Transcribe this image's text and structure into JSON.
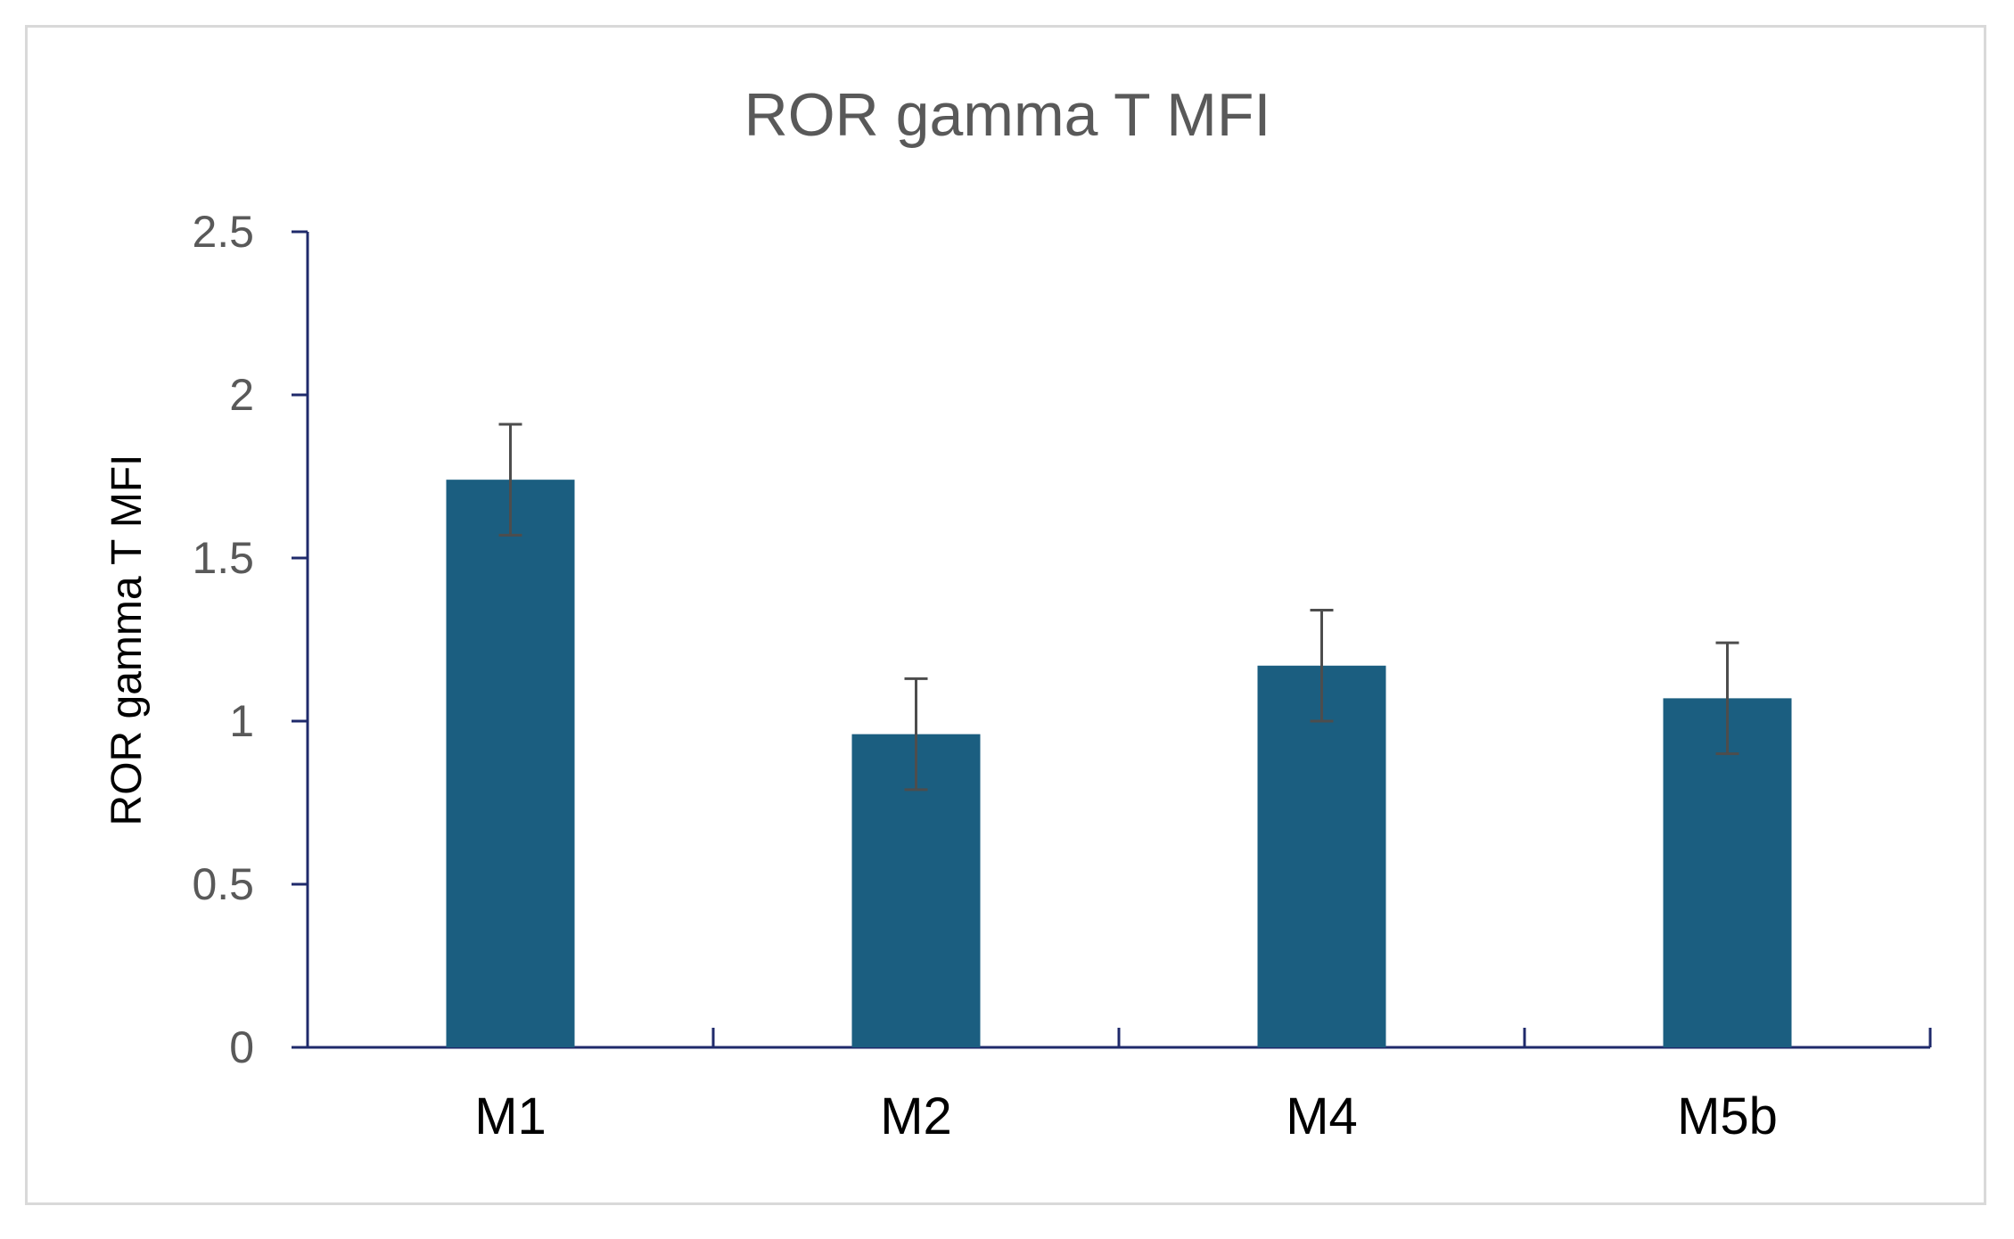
{
  "chart_data": {
    "type": "bar",
    "title": "ROR gamma T MFI",
    "xlabel": "",
    "ylabel": "ROR gamma T MFI",
    "categories": [
      "M1",
      "M2",
      "M4",
      "M5b"
    ],
    "values": [
      1.74,
      0.96,
      1.17,
      1.07
    ],
    "errors": [
      0.17,
      0.17,
      0.17,
      0.17
    ],
    "ylim": [
      0,
      2.5
    ],
    "yticks": [
      0,
      0.5,
      1,
      1.5,
      2,
      2.5
    ],
    "ytick_labels": [
      "0",
      "0.5",
      "1",
      "1.5",
      "2",
      "2.5"
    ],
    "grid": false,
    "legend": "none",
    "colors": {
      "bar": "#1b5e80",
      "error_bar": "#4d4d4d",
      "axis": "#1f2a6b",
      "title": "#595959",
      "frame": "#d9d9d9"
    }
  }
}
